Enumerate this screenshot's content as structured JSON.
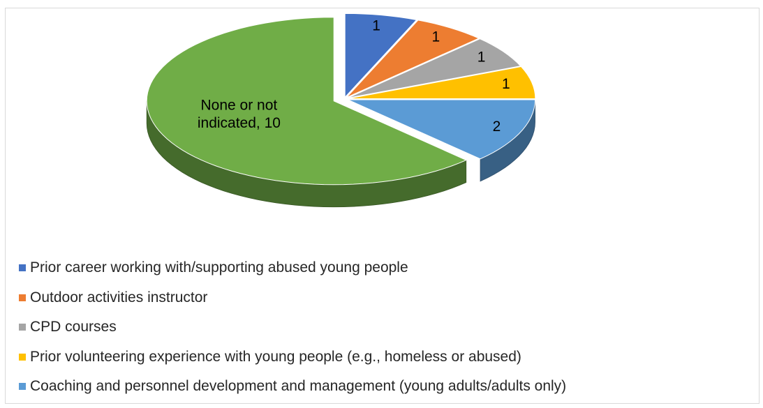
{
  "chart_data": {
    "type": "pie",
    "title": "",
    "three_d": true,
    "exploded": true,
    "legend_position": "bottom",
    "slices": [
      {
        "label": "Prior career working with/supporting abused young people",
        "value": 1,
        "color": "#4472c4",
        "data_label": "1"
      },
      {
        "label": "Outdoor activities instructor",
        "value": 1,
        "color": "#ed7d31",
        "data_label": "1"
      },
      {
        "label": "CPD courses",
        "value": 1,
        "color": "#a5a5a5",
        "data_label": "1"
      },
      {
        "label": "Prior volunteering experience with young people (e.g., homeless or abused)",
        "value": 1,
        "color": "#ffc000",
        "data_label": "1"
      },
      {
        "label": "Coaching and personnel development and management (young adults/adults only)",
        "value": 2,
        "color": "#5b9bd5",
        "data_label": "2"
      },
      {
        "label": "None or not indicated",
        "value": 10,
        "color": "#70ad47",
        "data_label": "None or not indicated, 10"
      }
    ]
  }
}
